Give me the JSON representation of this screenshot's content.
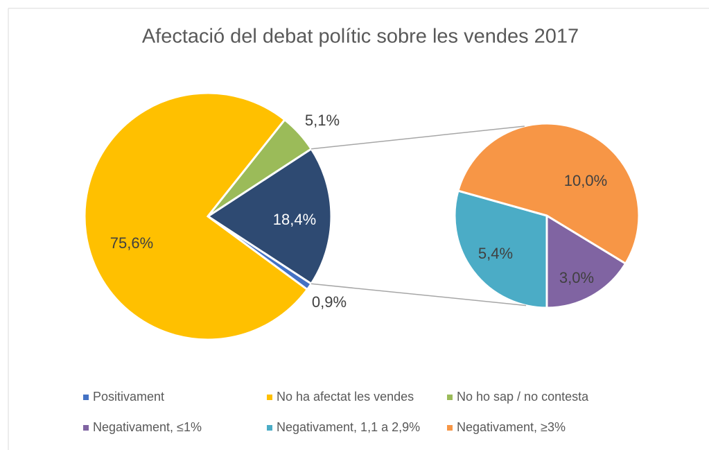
{
  "chart_data": {
    "type": "pie",
    "title": "Afectació del debat polític sobre les vendes 2017",
    "categories": [
      "Positivament",
      "No ha afectat les vendes",
      "No ho sap / no contesta",
      "Negativament, ≤1%",
      "Negativament, 1,1 a 2,9%",
      "Negativament, ≥3%"
    ],
    "values": [
      0.9,
      75.6,
      5.1,
      3.0,
      5.4,
      10.0
    ],
    "value_labels": [
      "0,9%",
      "75,6%",
      "5,1%",
      "3,0%",
      "5,4%",
      "10,0%"
    ],
    "colors": [
      "#4472c4",
      "#ffc000",
      "#9bbb59",
      "#8064a2",
      "#4bacc6",
      "#f79646"
    ],
    "other_value": 18.4,
    "other_label": "18,4%",
    "other_color": "#2e4a72",
    "legend": "bottom"
  }
}
